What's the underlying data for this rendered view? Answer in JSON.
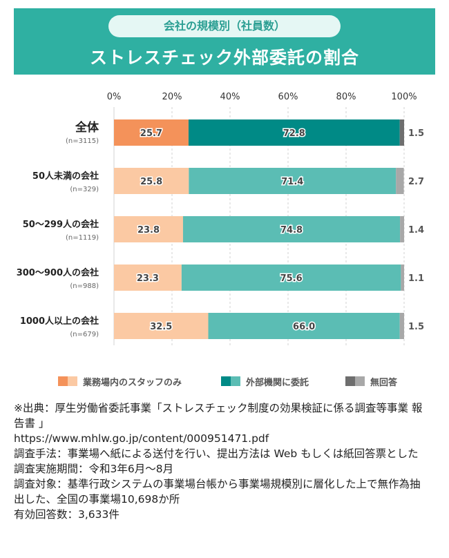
{
  "header": {
    "subtitle": "会社の規模別（社員数）",
    "title": "ストレスチェック外部委託の割合"
  },
  "colors": {
    "header_bg": "#2fb0a2",
    "internal_dark": "#f4925a",
    "internal_light": "#fbc9a3",
    "external_dark": "#008a86",
    "external_light": "#5bbdb4",
    "noanswer_dark": "#6e6e6e",
    "noanswer_light": "#a8a8a8",
    "grid": "#d0d0d0"
  },
  "chart_data": {
    "type": "bar",
    "orientation": "horizontal",
    "stacked": true,
    "xlim": [
      0,
      100
    ],
    "x_ticks": [
      "0%",
      "20%",
      "40%",
      "60%",
      "80%",
      "100%"
    ],
    "x_tick_values": [
      0,
      20,
      40,
      60,
      80,
      100
    ],
    "grid": true,
    "legend_position": "bottom",
    "categories": [
      {
        "label": "全体",
        "n": "(n=3115)",
        "emphasis": true
      },
      {
        "label": "50人未満の会社",
        "n": "(n=329)",
        "emphasis": false
      },
      {
        "label": "50〜299人の会社",
        "n": "(n=1119)",
        "emphasis": false
      },
      {
        "label": "300〜900人の会社",
        "n": "(n=988)",
        "emphasis": false
      },
      {
        "label": "1000人以上の会社",
        "n": "(n=679)",
        "emphasis": false
      }
    ],
    "series": [
      {
        "name": "業務場内のスタッフのみ",
        "values": [
          25.7,
          25.8,
          23.8,
          23.3,
          32.5
        ]
      },
      {
        "name": "外部機関に委託",
        "values": [
          72.8,
          71.4,
          74.8,
          75.6,
          66.0
        ]
      },
      {
        "name": "無回答",
        "values": [
          1.5,
          2.7,
          1.4,
          1.1,
          1.5
        ]
      }
    ]
  },
  "notes": [
    "※出典：厚生労働省委託事業「ストレスチェック制度の効果検証に係る調査等事業 報告書 」",
    "https://www.mhlw.go.jp/content/000951471.pdf",
    "調査手法：事業場へ紙による送付を行い、提出方法は Web もしくは紙回答票とした",
    "調査実施期間：令和3年6月〜8月",
    "調査対象：基準行政システムの事業場台帳から事業場規模別に層化した上で無作為抽出した、全国の事業場10,698か所",
    "有効回答数：3,633件"
  ]
}
